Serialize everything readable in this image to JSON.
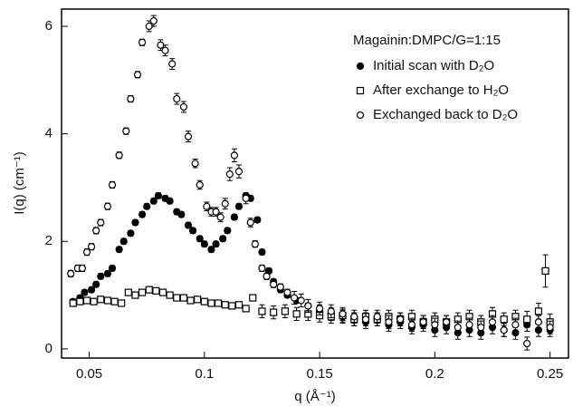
{
  "chart_data": {
    "type": "scatter",
    "annotation": "Magainin:DMPC/G=1:15",
    "xlabel": "q (Å⁻¹)",
    "ylabel": "I(q) (cm⁻¹)",
    "xlim": [
      0.038,
      0.258
    ],
    "ylim": [
      -0.17,
      6.32
    ],
    "xticks": [
      0.05,
      0.1,
      0.15,
      0.2,
      0.25
    ],
    "yticks": [
      0,
      2,
      4,
      6
    ],
    "grid": false,
    "series": [
      {
        "name": "Initial scan with D₂O",
        "color": "#000000",
        "marker": "circle",
        "fill": "#000000",
        "x": [
          0.043,
          0.046,
          0.048,
          0.051,
          0.053,
          0.055,
          0.058,
          0.06,
          0.063,
          0.065,
          0.068,
          0.07,
          0.073,
          0.075,
          0.078,
          0.08,
          0.083,
          0.085,
          0.088,
          0.09,
          0.093,
          0.095,
          0.098,
          0.1,
          0.103,
          0.105,
          0.108,
          0.11,
          0.113,
          0.115,
          0.118,
          0.12,
          0.123,
          0.125,
          0.128,
          0.13,
          0.133,
          0.136,
          0.14,
          0.145,
          0.15,
          0.155,
          0.16,
          0.165,
          0.17,
          0.175,
          0.18,
          0.185,
          0.19,
          0.195,
          0.2,
          0.205,
          0.21,
          0.215,
          0.22,
          0.225,
          0.23,
          0.235,
          0.24,
          0.245,
          0.25
        ],
        "values": [
          0.88,
          0.95,
          1.05,
          1.1,
          1.2,
          1.35,
          1.4,
          1.5,
          1.85,
          2.0,
          2.15,
          2.35,
          2.5,
          2.65,
          2.75,
          2.85,
          2.8,
          2.75,
          2.55,
          2.5,
          2.3,
          2.2,
          2.05,
          1.95,
          1.85,
          1.95,
          2.05,
          2.2,
          2.45,
          2.65,
          2.85,
          2.8,
          2.4,
          1.8,
          1.45,
          1.25,
          1.1,
          1.0,
          0.9,
          0.8,
          0.7,
          0.65,
          0.6,
          0.55,
          0.5,
          0.55,
          0.45,
          0.5,
          0.4,
          0.45,
          0.35,
          0.4,
          0.3,
          0.35,
          0.3,
          0.4,
          0.35,
          0.3,
          0.45,
          0.35,
          0.35
        ],
        "errors": [
          0.05,
          0.05,
          0.05,
          0.05,
          0.05,
          0.05,
          0.05,
          0.05,
          0.05,
          0.05,
          0.05,
          0.05,
          0.05,
          0.05,
          0.05,
          0.05,
          0.05,
          0.05,
          0.05,
          0.05,
          0.05,
          0.05,
          0.05,
          0.05,
          0.05,
          0.05,
          0.05,
          0.05,
          0.05,
          0.05,
          0.05,
          0.05,
          0.05,
          0.05,
          0.05,
          0.05,
          0.05,
          0.05,
          0.05,
          0.05,
          0.12,
          0.12,
          0.12,
          0.12,
          0.12,
          0.12,
          0.12,
          0.12,
          0.12,
          0.12,
          0.12,
          0.12,
          0.12,
          0.12,
          0.12,
          0.12,
          0.12,
          0.12,
          0.12,
          0.12,
          0.12
        ]
      },
      {
        "name": "After exchange to H₂O",
        "color": "#000000",
        "marker": "square",
        "fill": "#ffffff",
        "x": [
          0.043,
          0.046,
          0.049,
          0.052,
          0.055,
          0.058,
          0.061,
          0.064,
          0.067,
          0.07,
          0.073,
          0.076,
          0.079,
          0.082,
          0.085,
          0.088,
          0.091,
          0.094,
          0.097,
          0.1,
          0.103,
          0.106,
          0.109,
          0.112,
          0.115,
          0.118,
          0.121,
          0.125,
          0.13,
          0.135,
          0.14,
          0.145,
          0.15,
          0.155,
          0.16,
          0.165,
          0.17,
          0.175,
          0.18,
          0.185,
          0.19,
          0.195,
          0.2,
          0.205,
          0.21,
          0.215,
          0.22,
          0.225,
          0.23,
          0.235,
          0.24,
          0.245,
          0.248,
          0.25
        ],
        "values": [
          0.85,
          0.88,
          0.9,
          0.88,
          0.92,
          0.9,
          0.88,
          0.85,
          1.05,
          1.0,
          1.05,
          1.1,
          1.08,
          1.05,
          1.0,
          0.95,
          0.95,
          0.9,
          0.92,
          0.88,
          0.85,
          0.85,
          0.82,
          0.8,
          0.82,
          0.75,
          0.95,
          0.7,
          0.68,
          0.7,
          0.65,
          0.65,
          0.62,
          0.6,
          0.62,
          0.55,
          0.6,
          0.55,
          0.6,
          0.55,
          0.6,
          0.5,
          0.55,
          0.5,
          0.55,
          0.6,
          0.5,
          0.65,
          0.55,
          0.6,
          0.55,
          0.7,
          1.45,
          0.5
        ],
        "errors": [
          0.05,
          0.05,
          0.05,
          0.05,
          0.05,
          0.05,
          0.05,
          0.05,
          0.05,
          0.05,
          0.05,
          0.05,
          0.05,
          0.05,
          0.05,
          0.05,
          0.05,
          0.05,
          0.05,
          0.05,
          0.05,
          0.05,
          0.05,
          0.05,
          0.05,
          0.05,
          0.05,
          0.12,
          0.12,
          0.12,
          0.12,
          0.12,
          0.12,
          0.12,
          0.12,
          0.12,
          0.12,
          0.12,
          0.12,
          0.12,
          0.12,
          0.12,
          0.12,
          0.12,
          0.12,
          0.12,
          0.12,
          0.12,
          0.12,
          0.12,
          0.15,
          0.15,
          0.3,
          0.15
        ]
      },
      {
        "name": "Exchanged back to D₂O",
        "color": "#000000",
        "marker": "circle",
        "fill": "#ffffff",
        "x": [
          0.042,
          0.045,
          0.047,
          0.049,
          0.051,
          0.053,
          0.055,
          0.058,
          0.06,
          0.063,
          0.066,
          0.068,
          0.071,
          0.073,
          0.076,
          0.078,
          0.081,
          0.083,
          0.086,
          0.088,
          0.091,
          0.093,
          0.096,
          0.098,
          0.101,
          0.103,
          0.105,
          0.107,
          0.109,
          0.111,
          0.113,
          0.115,
          0.118,
          0.12,
          0.122,
          0.125,
          0.127,
          0.13,
          0.133,
          0.136,
          0.139,
          0.142,
          0.145,
          0.15,
          0.155,
          0.16,
          0.165,
          0.17,
          0.175,
          0.18,
          0.185,
          0.19,
          0.195,
          0.2,
          0.205,
          0.21,
          0.215,
          0.22,
          0.225,
          0.23,
          0.235,
          0.24,
          0.245,
          0.25
        ],
        "values": [
          1.4,
          1.5,
          1.5,
          1.8,
          1.9,
          2.2,
          2.35,
          2.65,
          3.05,
          3.6,
          4.05,
          4.65,
          5.1,
          5.7,
          6.0,
          6.1,
          5.65,
          5.55,
          5.3,
          4.65,
          4.5,
          3.95,
          3.45,
          3.05,
          2.65,
          2.55,
          2.55,
          2.45,
          2.7,
          3.25,
          3.6,
          3.3,
          2.8,
          2.35,
          1.95,
          1.5,
          1.35,
          1.2,
          1.15,
          1.05,
          0.95,
          0.9,
          0.8,
          0.75,
          0.7,
          0.65,
          0.6,
          0.55,
          0.6,
          0.5,
          0.55,
          0.45,
          0.5,
          0.45,
          0.5,
          0.4,
          0.45,
          0.4,
          0.5,
          0.35,
          0.45,
          0.1,
          0.5,
          0.4
        ],
        "errors": [
          0.06,
          0.06,
          0.06,
          0.06,
          0.06,
          0.06,
          0.06,
          0.06,
          0.06,
          0.06,
          0.06,
          0.06,
          0.06,
          0.06,
          0.1,
          0.1,
          0.1,
          0.1,
          0.1,
          0.1,
          0.1,
          0.1,
          0.08,
          0.08,
          0.08,
          0.08,
          0.08,
          0.08,
          0.1,
          0.12,
          0.12,
          0.12,
          0.1,
          0.08,
          0.06,
          0.06,
          0.06,
          0.06,
          0.06,
          0.06,
          0.12,
          0.12,
          0.12,
          0.12,
          0.12,
          0.12,
          0.12,
          0.12,
          0.12,
          0.12,
          0.12,
          0.12,
          0.12,
          0.12,
          0.12,
          0.12,
          0.12,
          0.12,
          0.12,
          0.12,
          0.12,
          0.12,
          0.12,
          0.12
        ]
      }
    ]
  }
}
